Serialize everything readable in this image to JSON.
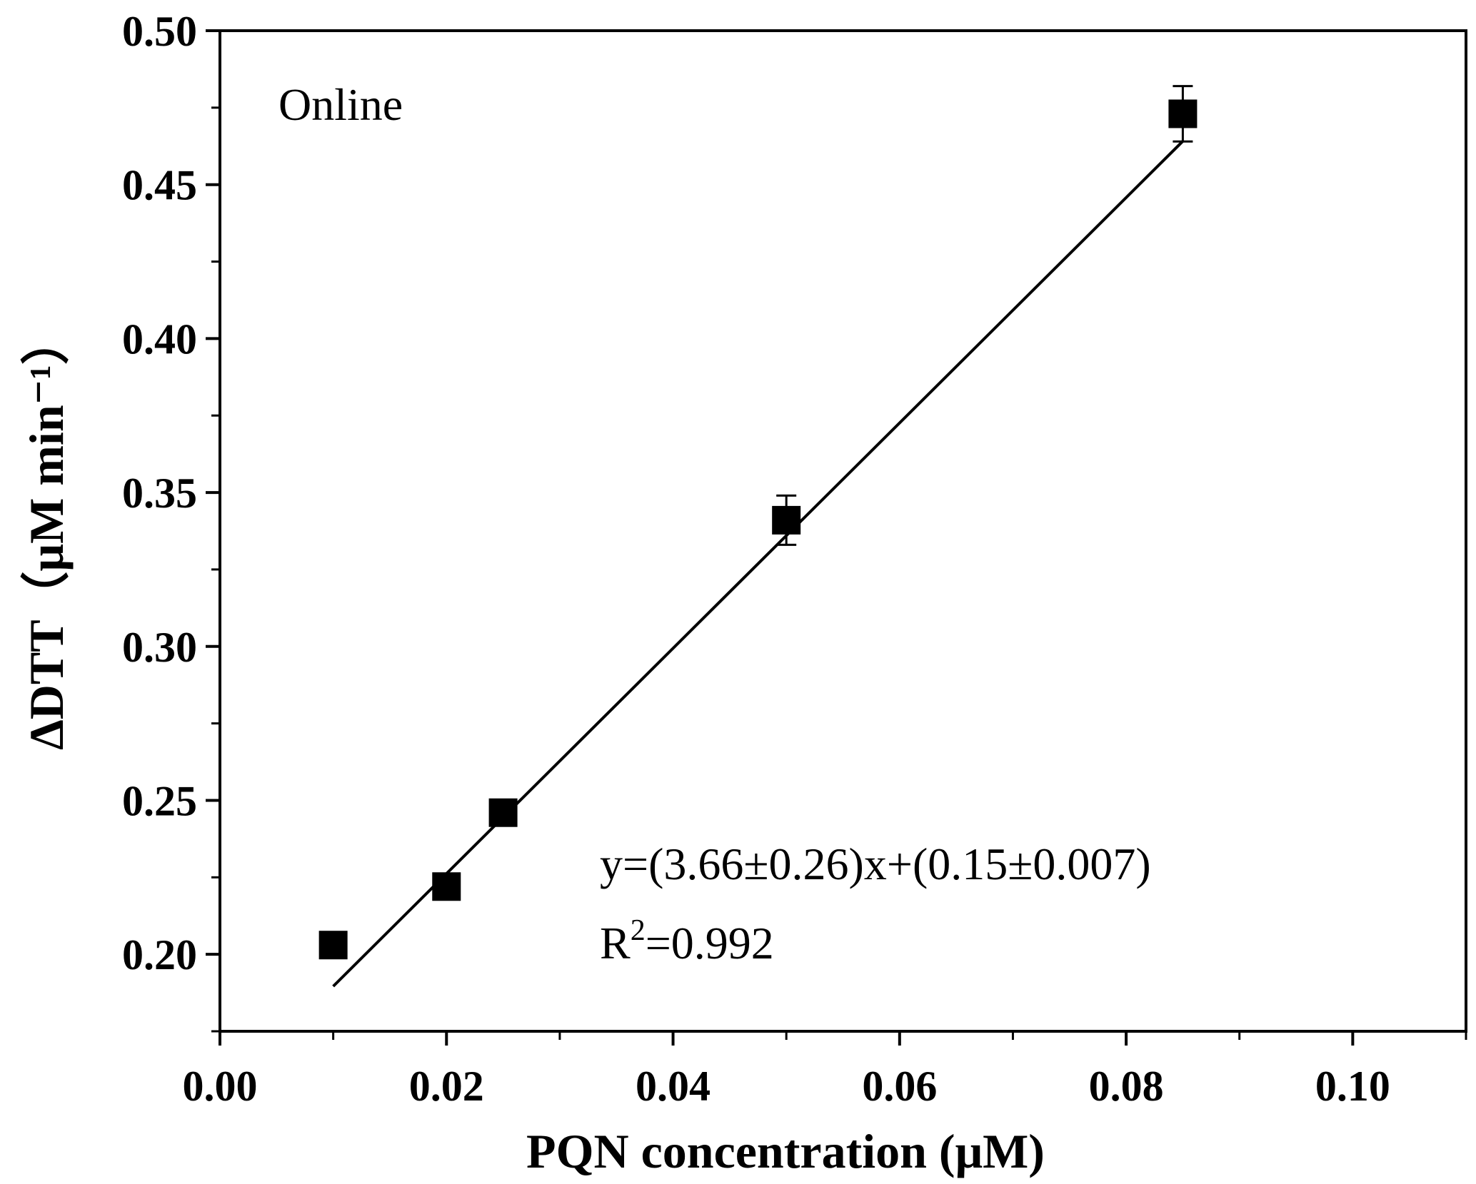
{
  "chart_data": {
    "type": "scatter",
    "annotation_label": "Online",
    "xlabel": "PQN concentration (μM)",
    "ylabel": "ΔDTT（μM min⁻¹）",
    "xlim": [
      0.0,
      0.11
    ],
    "ylim": [
      0.175,
      0.5
    ],
    "x_ticks": [
      "0.00",
      "0.02",
      "0.04",
      "0.06",
      "0.08",
      "0.10"
    ],
    "y_ticks": [
      "0.20",
      "0.25",
      "0.30",
      "0.35",
      "0.40",
      "0.45",
      "0.50"
    ],
    "series": [
      {
        "x": [
          0.01,
          0.02,
          0.025,
          0.05,
          0.085
        ],
        "y": [
          0.203,
          0.222,
          0.246,
          0.341,
          0.473
        ],
        "error": [
          0.0,
          0.0,
          0.004,
          0.008,
          0.009
        ],
        "marker": "square",
        "color": "#000000"
      }
    ],
    "fit_line": {
      "x": [
        0.01,
        0.085
      ],
      "y": [
        0.1896,
        0.4641
      ],
      "color": "#000000"
    },
    "equation": "y=(3.66±0.26)x+(0.15±0.007)",
    "r2_label": "R",
    "r2_sup": "2",
    "r2_value": "=0.992",
    "grid": false,
    "legend": "none"
  }
}
